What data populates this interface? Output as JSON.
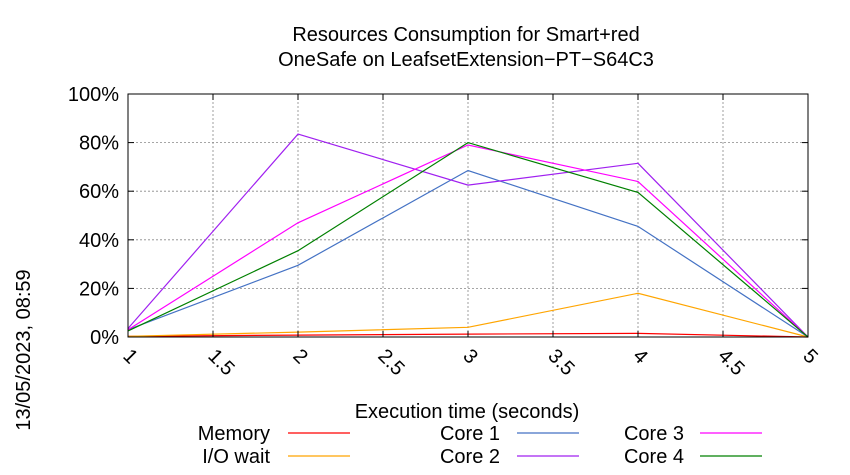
{
  "side_label": "13/05/2023, 08:59",
  "chart_data": {
    "type": "line",
    "title_lines": [
      "Resources Consumption for Smart+red",
      "OneSafe on LeafsetExtension−PT−S64C3"
    ],
    "xlabel": "Execution time (seconds)",
    "ylabel": "",
    "x": [
      1,
      2,
      3,
      4,
      5
    ],
    "x_ticks": [
      "1",
      "1.5",
      "2",
      "2.5",
      "3",
      "3.5",
      "4",
      "4.5",
      "5"
    ],
    "y_ticks": [
      "0%",
      "20%",
      "40%",
      "60%",
      "80%",
      "100%"
    ],
    "xlim": [
      1,
      5
    ],
    "ylim": [
      0,
      100
    ],
    "grid": true,
    "legend_position": "bottom",
    "series": [
      {
        "name": "Memory",
        "color": "#ff0000",
        "values": [
          0.3,
          0.8,
          1.2,
          1.5,
          0
        ]
      },
      {
        "name": "I/O wait",
        "color": "#ffa500",
        "values": [
          0.3,
          2,
          4,
          18,
          0
        ]
      },
      {
        "name": "Core 1",
        "color": "#4472c4",
        "values": [
          3,
          29.5,
          68.5,
          45.5,
          0
        ]
      },
      {
        "name": "Core 2",
        "color": "#a020f0",
        "values": [
          3.5,
          83.5,
          62.5,
          71.5,
          0
        ]
      },
      {
        "name": "Core 3",
        "color": "#ff00ff",
        "values": [
          3,
          47,
          79,
          64,
          0
        ]
      },
      {
        "name": "Core 4",
        "color": "#008000",
        "values": [
          2.5,
          35.5,
          80,
          59.5,
          0
        ]
      }
    ]
  }
}
